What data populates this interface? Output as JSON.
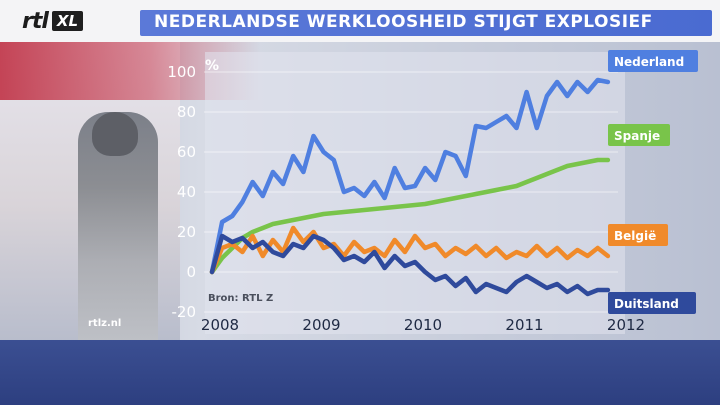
{
  "header": {
    "logo_text": "rtl",
    "logo_badge": "XL",
    "title": "NEDERLANDSE WERKLOOSHEID STIJGT EXPLOSIEF"
  },
  "footer": {
    "site": "rtlz.nl"
  },
  "chart_data": {
    "type": "line",
    "title": "NEDERLANDSE WERKLOOSHEID STIJGT EXPLOSIEF",
    "ylabel": "%",
    "source": "Bron: RTL Z",
    "ylim": [
      -20,
      100
    ],
    "xlim": [
      2008,
      2012
    ],
    "y_ticks": [
      100,
      80,
      60,
      40,
      20,
      0,
      -20
    ],
    "x_ticks": [
      2008,
      2009,
      2010,
      2011,
      2012
    ],
    "grid": true,
    "legend": "right, label boxes at series ends",
    "series": [
      {
        "name": "Nederland",
        "color": "#4f7fe0",
        "x": [
          2008.0,
          2008.1,
          2008.2,
          2008.3,
          2008.4,
          2008.5,
          2008.6,
          2008.7,
          2008.8,
          2008.9,
          2009.0,
          2009.1,
          2009.2,
          2009.3,
          2009.4,
          2009.5,
          2009.6,
          2009.7,
          2009.8,
          2009.9,
          2010.0,
          2010.1,
          2010.2,
          2010.3,
          2010.4,
          2010.5,
          2010.6,
          2010.7,
          2010.8,
          2010.9,
          2011.0,
          2011.1,
          2011.2,
          2011.3,
          2011.4,
          2011.5,
          2011.6,
          2011.7,
          2011.8,
          2011.9
        ],
        "y": [
          0,
          25,
          28,
          35,
          45,
          38,
          50,
          44,
          58,
          50,
          68,
          60,
          56,
          40,
          42,
          38,
          45,
          37,
          52,
          42,
          43,
          52,
          46,
          60,
          58,
          48,
          73,
          72,
          75,
          78,
          72,
          90,
          72,
          88,
          95,
          88,
          95,
          90,
          96,
          95
        ]
      },
      {
        "name": "Spanje",
        "color": "#79c44a",
        "x": [
          2008.0,
          2008.1,
          2008.2,
          2008.3,
          2008.4,
          2008.5,
          2008.6,
          2008.7,
          2008.8,
          2008.9,
          2009.0,
          2009.1,
          2009.2,
          2009.3,
          2009.4,
          2009.5,
          2009.6,
          2009.7,
          2009.8,
          2009.9,
          2010.0,
          2010.1,
          2010.2,
          2010.3,
          2010.4,
          2010.5,
          2010.6,
          2010.7,
          2010.8,
          2010.9,
          2011.0,
          2011.1,
          2011.2,
          2011.3,
          2011.4,
          2011.5,
          2011.6,
          2011.7,
          2011.8,
          2011.9
        ],
        "y": [
          0,
          7,
          12,
          17,
          20,
          22,
          24,
          25,
          26,
          27,
          28,
          29,
          29.5,
          30,
          30.5,
          31,
          31.5,
          32,
          32.5,
          33,
          33.5,
          34,
          35,
          36,
          37,
          38,
          39,
          40,
          41,
          42,
          43,
          45,
          47,
          49,
          51,
          53,
          54,
          55,
          56,
          56
        ]
      },
      {
        "name": "België",
        "color": "#f08a2a",
        "x": [
          2008.0,
          2008.1,
          2008.2,
          2008.3,
          2008.4,
          2008.5,
          2008.6,
          2008.7,
          2008.8,
          2008.9,
          2009.0,
          2009.1,
          2009.2,
          2009.3,
          2009.4,
          2009.5,
          2009.6,
          2009.7,
          2009.8,
          2009.9,
          2010.0,
          2010.1,
          2010.2,
          2010.3,
          2010.4,
          2010.5,
          2010.6,
          2010.7,
          2010.8,
          2010.9,
          2011.0,
          2011.1,
          2011.2,
          2011.3,
          2011.4,
          2011.5,
          2011.6,
          2011.7,
          2011.8,
          2011.9
        ],
        "y": [
          0,
          12,
          14,
          10,
          18,
          8,
          16,
          10,
          22,
          15,
          20,
          12,
          14,
          8,
          15,
          10,
          12,
          8,
          16,
          10,
          18,
          12,
          14,
          8,
          12,
          9,
          13,
          8,
          12,
          7,
          10,
          8,
          13,
          8,
          12,
          7,
          11,
          8,
          12,
          8
        ]
      },
      {
        "name": "Duitsland",
        "color": "#2f4a9c",
        "x": [
          2008.0,
          2008.1,
          2008.2,
          2008.3,
          2008.4,
          2008.5,
          2008.6,
          2008.7,
          2008.8,
          2008.9,
          2009.0,
          2009.1,
          2009.2,
          2009.3,
          2009.4,
          2009.5,
          2009.6,
          2009.7,
          2009.8,
          2009.9,
          2010.0,
          2010.1,
          2010.2,
          2010.3,
          2010.4,
          2010.5,
          2010.6,
          2010.7,
          2010.8,
          2010.9,
          2011.0,
          2011.1,
          2011.2,
          2011.3,
          2011.4,
          2011.5,
          2011.6,
          2011.7,
          2011.8,
          2011.9
        ],
        "y": [
          0,
          18,
          15,
          17,
          12,
          15,
          10,
          8,
          14,
          12,
          18,
          16,
          12,
          6,
          8,
          5,
          10,
          2,
          8,
          3,
          5,
          0,
          -4,
          -2,
          -7,
          -3,
          -10,
          -6,
          -8,
          -10,
          -5,
          -2,
          -5,
          -8,
          -6,
          -10,
          -7,
          -11,
          -9,
          -9
        ]
      }
    ]
  }
}
